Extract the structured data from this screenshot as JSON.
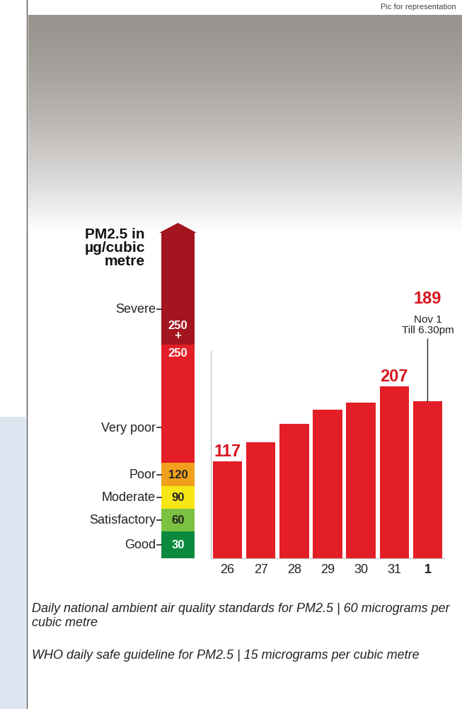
{
  "chart_data": {
    "type": "bar",
    "categories": [
      "26",
      "27",
      "28",
      "29",
      "30",
      "31",
      "1"
    ],
    "values": [
      117,
      140,
      162,
      179,
      188,
      207,
      189
    ],
    "value_labels": [
      "117",
      null,
      null,
      null,
      null,
      "207",
      "189"
    ],
    "color": "#e41e26",
    "ylim": [
      0,
      250
    ],
    "yticks": [],
    "tick_labels": "x",
    "annotations": [
      {
        "category": "1",
        "text": "Nov 1\nTill 6.30pm"
      }
    ]
  },
  "scale": {
    "title": "PM2.5 in\nµg/cubic\nmetre",
    "levels": [
      {
        "name": "Good",
        "value": 30,
        "color": "#0b8a3e"
      },
      {
        "name": "Satisfactory",
        "value": 60,
        "color": "#7cc242"
      },
      {
        "name": "Moderate",
        "value": 90,
        "color": "#f7e615"
      },
      {
        "name": "Poor",
        "value": 120,
        "color": "#f0a01c"
      },
      {
        "name": "Very poor",
        "value": 250,
        "color": "#e41e26"
      },
      {
        "name": "Severe",
        "value": 250,
        "label": "250\n+",
        "color": "#a3161f"
      }
    ]
  },
  "notes": [
    "Daily national ambient air quality standards for PM2.5 | 60 micrograms per cubic metre",
    "WHO daily safe guideline for PM2.5 | 15 micrograms per cubic metre"
  ],
  "caption": "Pic for representation"
}
